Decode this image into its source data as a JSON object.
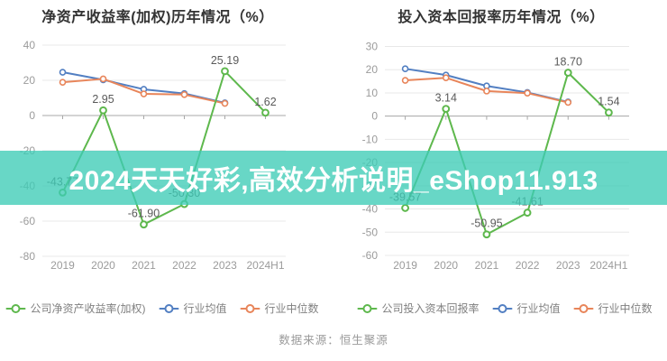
{
  "page": {
    "background": "#ffffff"
  },
  "banner": {
    "text": "2024天天好彩,高效分析说明_eShop11.913",
    "background": "rgba(62,204,182,0.78)",
    "text_color": "#ffffff"
  },
  "footer": {
    "text": "数据来源：恒生聚源"
  },
  "colors": {
    "company_green": "#5eb84d",
    "industry_avg_blue": "#527fc2",
    "industry_median_orange": "#e8855a",
    "grid": "#e8e8e8",
    "axis": "#a8a8a8",
    "tick_label": "#9b9b9b",
    "data_label": "#5a5a5a"
  },
  "chart_data": [
    {
      "type": "line",
      "title": "净资产收益率(加权)历年情况（%）",
      "categories": [
        "2019",
        "2020",
        "2021",
        "2022",
        "2023",
        "2024H1"
      ],
      "y_ticks": [
        40,
        20,
        0,
        -20,
        -40,
        -60,
        -80
      ],
      "ylim": [
        -80,
        40
      ],
      "grid": "on",
      "legend_position": "bottom",
      "series": [
        {
          "name": "公司净资产收益率(加权)",
          "color_key": "company_green",
          "values": [
            -43.77,
            2.95,
            -61.9,
            -50.3,
            25.19,
            1.62
          ],
          "point_labels": [
            "-43.77",
            "2.95",
            "-61.90",
            "-50.30",
            "25.19",
            "1.62"
          ]
        },
        {
          "name": "行业均值",
          "color_key": "industry_avg_blue",
          "values": [
            24.6,
            20.3,
            14.9,
            12.5,
            7.2,
            null
          ],
          "point_labels": null
        },
        {
          "name": "行业中位数",
          "color_key": "industry_median_orange",
          "values": [
            18.9,
            20.8,
            12.3,
            11.9,
            6.9,
            null
          ],
          "point_labels": null
        }
      ]
    },
    {
      "type": "line",
      "title": "投入资本回报率历年情况（%）",
      "categories": [
        "2019",
        "2020",
        "2021",
        "2022",
        "2023",
        "2024H1"
      ],
      "y_ticks": [
        30,
        20,
        10,
        0,
        -10,
        -20,
        -30,
        -40,
        -50,
        -60
      ],
      "ylim": [
        -60,
        30
      ],
      "grid": "on",
      "legend_position": "bottom",
      "series": [
        {
          "name": "公司投入资本回报率",
          "color_key": "company_green",
          "values": [
            -39.57,
            3.14,
            -50.95,
            -41.61,
            18.7,
            1.54
          ],
          "point_labels": [
            "-39.57",
            "3.14",
            "-50.95",
            "-41.61",
            "18.70",
            "1.54"
          ]
        },
        {
          "name": "行业均值",
          "color_key": "industry_avg_blue",
          "values": [
            20.4,
            17.7,
            13.0,
            10.2,
            6.1,
            null
          ],
          "point_labels": null
        },
        {
          "name": "行业中位数",
          "color_key": "industry_median_orange",
          "values": [
            15.4,
            16.5,
            10.8,
            9.9,
            5.9,
            null
          ],
          "point_labels": null
        }
      ]
    }
  ]
}
